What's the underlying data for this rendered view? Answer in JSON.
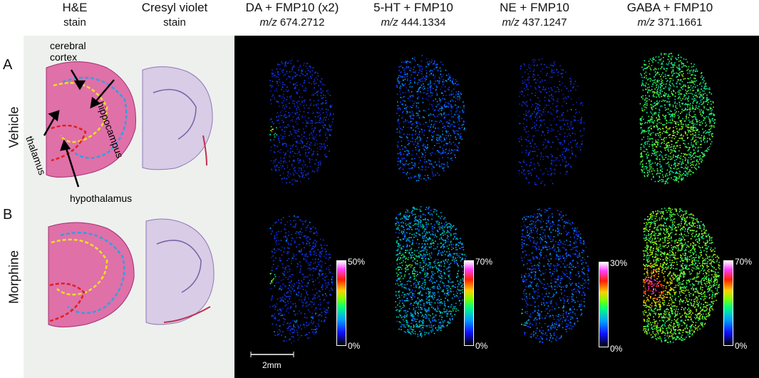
{
  "headers": [
    {
      "title": "H&E",
      "sub": "stain"
    },
    {
      "title": "Cresyl violet",
      "sub": "stain"
    },
    {
      "title": "DA + FMP10 (x2)",
      "mz_prefix": "m/z",
      "mz": "674.2712"
    },
    {
      "title": "5-HT + FMP10",
      "mz_prefix": "m/z",
      "mz": "444.1334"
    },
    {
      "title": "NE + FMP10",
      "mz_prefix": "m/z",
      "mz": "437.1247"
    },
    {
      "title": "GABA + FMP10",
      "mz_prefix": "m/z",
      "mz": "371.1661"
    }
  ],
  "rows": [
    {
      "letter": "A",
      "name": "Vehicle"
    },
    {
      "letter": "B",
      "name": "Morphine"
    }
  ],
  "annotations": {
    "cortex": "cerebral\ncortex",
    "hippocampus": "hippocampus",
    "thalamus": "thalamus",
    "hypothalamus": "hypothalamus"
  },
  "colorbars": [
    {
      "max": "50%",
      "min": "0%"
    },
    {
      "max": "70%",
      "min": "0%"
    },
    {
      "max": "30%",
      "min": "0%"
    },
    {
      "max": "70%",
      "min": "0%"
    }
  ],
  "scalebar": "2mm",
  "colors": {
    "panel_bg": "#000000",
    "stain_bg": "#eef0ee",
    "he_tissue": "#e070a8",
    "cresyl_tissue": "#c8b8dc"
  }
}
